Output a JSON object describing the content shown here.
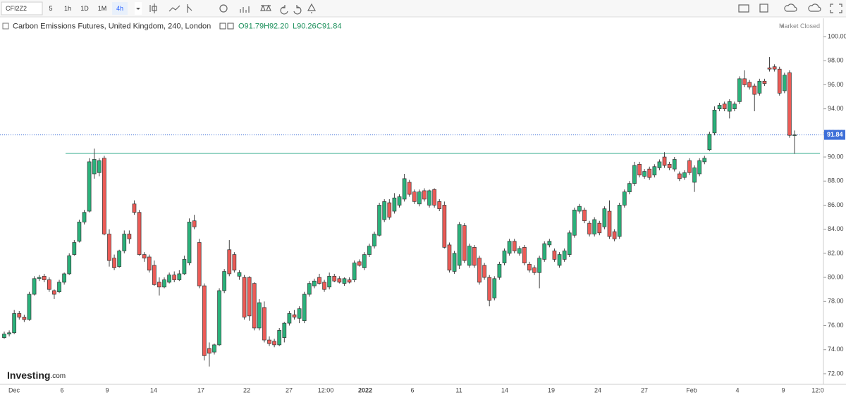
{
  "toolbar": {
    "symbol": "CFI2Z2",
    "intervals": [
      "5",
      "1h",
      "1D",
      "1M",
      "4h"
    ]
  },
  "chart_data": {
    "type": "candlestick",
    "title": "Carbon Emissions Futures, United Kingdom, 240, London",
    "ohlc_labels": [
      "O91.79",
      "H92.20",
      "L90.26",
      "C91.84"
    ],
    "status": "Market Closed",
    "brand": [
      "Investing",
      ".com"
    ],
    "up_color": "#2ab27b",
    "down_color": "#ec5b56",
    "open": [
      75.0,
      75.3,
      75.4,
      77.0,
      76.7,
      76.5,
      78.6,
      79.9,
      80.1,
      79.8,
      78.9,
      78.8,
      79.6,
      80.3,
      81.9,
      83.0,
      84.6,
      85.5,
      88.6,
      88.7,
      89.9,
      83.6,
      81.6,
      80.9,
      82.2,
      83.6,
      86.1,
      85.4,
      81.9,
      81.7,
      81.0,
      79.6,
      79.2,
      79.6,
      80.2,
      79.8,
      80.3,
      81.2,
      84.7,
      82.9,
      79.3,
      74.1,
      73.8,
      74.4,
      78.9,
      82.3,
      81.9,
      80.1,
      80.0,
      80.0,
      79.5,
      75.8,
      77.5,
      74.8,
      74.7,
      74.4,
      75.0,
      76.2,
      76.9,
      76.6,
      76.4,
      78.6,
      79.3,
      80.0,
      79.6,
      79.2,
      80.1,
      79.9,
      79.5,
      79.8,
      79.8,
      81.3,
      80.8,
      81.9,
      82.6,
      83.5,
      84.8,
      86.2,
      85.5,
      86.0,
      86.5,
      87.9,
      87.1,
      86.1,
      87.2,
      86.0,
      87.3,
      86.3,
      86.0,
      82.7,
      80.5,
      81.0,
      84.3,
      81.0,
      82.5,
      81.6,
      81.0,
      80.0,
      78.3,
      80.0,
      81.2,
      82.0,
      83.0,
      82.0,
      82.5,
      81.1,
      80.8,
      80.4,
      81.5,
      82.7,
      82.2,
      81.0,
      81.5,
      81.9,
      83.5,
      85.5,
      85.6,
      84.5,
      83.6,
      84.5,
      84.2,
      85.5,
      83.8,
      83.4,
      86.0,
      87.1,
      87.8,
      89.4,
      88.4,
      89.0,
      88.5,
      89.1,
      90.0,
      89.4,
      89.0,
      88.6,
      88.3,
      89.7,
      87.9,
      88.6,
      89.6,
      90.6,
      92.0,
      94.0,
      94.4,
      93.8,
      94.0,
      94.6,
      96.5,
      96.2,
      95.9,
      95.3,
      96.3,
      97.4,
      97.5,
      97.3,
      95.5,
      97.0,
      91.79
    ],
    "high": [
      75.5,
      75.6,
      77.3,
      77.2,
      76.9,
      78.8,
      80.1,
      80.2,
      80.3,
      80.0,
      79.0,
      79.8,
      80.4,
      82.0,
      83.1,
      84.8,
      85.6,
      89.9,
      90.7,
      89.9,
      90.1,
      84.0,
      81.9,
      82.3,
      83.9,
      83.9,
      86.4,
      85.6,
      82.1,
      81.9,
      81.4,
      80.0,
      80.0,
      80.4,
      80.5,
      80.6,
      81.8,
      84.9,
      85.2,
      83.2,
      79.5,
      74.6,
      74.5,
      79.1,
      80.7,
      83.1,
      82.1,
      80.6,
      80.2,
      80.1,
      79.6,
      78.2,
      78.0,
      75.1,
      74.9,
      75.8,
      76.3,
      77.2,
      77.3,
      77.6,
      78.8,
      79.7,
      79.9,
      80.3,
      79.8,
      80.4,
      80.3,
      80.1,
      80.0,
      80.0,
      81.4,
      81.5,
      82.1,
      82.8,
      83.8,
      86.2,
      86.5,
      86.5,
      87.0,
      86.9,
      88.6,
      88.1,
      87.3,
      87.3,
      87.4,
      87.3,
      87.4,
      86.5,
      86.3,
      82.9,
      82.2,
      84.6,
      84.5,
      82.8,
      82.7,
      81.8,
      81.2,
      80.2,
      80.1,
      81.3,
      82.4,
      83.2,
      83.2,
      82.6,
      82.7,
      81.3,
      81.0,
      81.8,
      83.0,
      83.2,
      82.4,
      82.1,
      82.4,
      83.9,
      85.8,
      86.1,
      85.8,
      84.7,
      85.0,
      84.7,
      85.9,
      86.4,
      84.0,
      86.2,
      87.3,
      88.0,
      89.6,
      89.6,
      89.0,
      89.2,
      89.4,
      89.8,
      90.4,
      89.6,
      90.0,
      88.8,
      88.9,
      89.9,
      89.3,
      89.9,
      90.1,
      92.1,
      94.2,
      94.5,
      94.6,
      94.8,
      94.6,
      96.7,
      97.2,
      96.4,
      96.1,
      96.5,
      96.5,
      98.3,
      97.7,
      97.5,
      97.0,
      97.2,
      92.2
    ],
    "low": [
      74.9,
      75.1,
      75.3,
      76.5,
      76.3,
      76.4,
      78.5,
      79.7,
      79.6,
      78.8,
      78.2,
      78.7,
      79.4,
      80.2,
      81.8,
      82.9,
      84.4,
      85.4,
      88.2,
      88.4,
      83.5,
      80.9,
      80.6,
      80.8,
      82.0,
      82.8,
      85.2,
      81.8,
      81.3,
      80.4,
      79.3,
      78.5,
      79.1,
      79.5,
      79.6,
      79.7,
      80.2,
      81.0,
      84.0,
      79.1,
      73.1,
      72.6,
      73.6,
      74.3,
      78.7,
      80.1,
      80.4,
      79.8,
      76.5,
      76.4,
      75.6,
      75.6,
      74.6,
      74.3,
      74.2,
      74.3,
      74.6,
      76.0,
      76.5,
      76.2,
      76.2,
      78.4,
      79.1,
      79.4,
      78.8,
      79.0,
      79.6,
      79.5,
      79.3,
      79.5,
      79.6,
      80.9,
      80.6,
      81.7,
      82.4,
      83.4,
      84.6,
      84.8,
      85.3,
      85.8,
      86.3,
      86.7,
      86.1,
      85.9,
      86.3,
      85.8,
      85.8,
      85.5,
      82.4,
      80.4,
      80.3,
      80.7,
      81.2,
      80.8,
      80.8,
      79.4,
      79.8,
      77.6,
      78.1,
      79.8,
      81.0,
      81.8,
      82.0,
      81.8,
      81.0,
      80.4,
      80.2,
      79.1,
      81.3,
      82.5,
      81.3,
      80.8,
      81.3,
      81.7,
      83.3,
      85.3,
      84.5,
      83.4,
      83.4,
      83.5,
      84.0,
      83.2,
      83.0,
      83.2,
      85.8,
      86.9,
      87.6,
      88.3,
      88.2,
      88.1,
      88.3,
      88.9,
      89.1,
      88.9,
      88.8,
      88.0,
      88.1,
      88.5,
      87.1,
      88.4,
      89.4,
      90.5,
      91.8,
      93.8,
      93.8,
      93.2,
      93.8,
      94.4,
      95.8,
      95.6,
      93.8,
      95.1,
      95.9,
      97.1,
      97.1,
      95.1,
      95.3,
      91.6,
      90.26
    ],
    "close": [
      75.3,
      75.4,
      77.0,
      76.7,
      76.5,
      78.6,
      79.9,
      80.0,
      79.8,
      79.0,
      78.6,
      79.6,
      80.3,
      81.8,
      82.9,
      84.6,
      85.4,
      89.6,
      89.8,
      89.7,
      83.6,
      81.4,
      80.8,
      82.2,
      83.6,
      83.2,
      85.4,
      81.9,
      81.6,
      80.6,
      79.4,
      79.2,
      79.8,
      80.2,
      79.8,
      80.3,
      81.5,
      84.6,
      84.2,
      79.3,
      73.5,
      73.7,
      74.4,
      78.9,
      80.5,
      80.3,
      80.6,
      80.4,
      76.7,
      76.8,
      75.8,
      77.9,
      74.8,
      74.5,
      74.4,
      75.6,
      76.2,
      77.0,
      76.7,
      77.4,
      78.6,
      79.5,
      79.7,
      79.5,
      79.0,
      80.1,
      79.7,
      79.6,
      79.9,
      79.6,
      81.2,
      81.0,
      81.9,
      82.6,
      83.6,
      86.0,
      86.3,
      85.0,
      86.6,
      86.7,
      88.2,
      86.9,
      86.3,
      87.1,
      86.5,
      87.2,
      86.0,
      85.7,
      82.5,
      80.6,
      82.0,
      84.4,
      81.4,
      82.6,
      81.0,
      79.6,
      80.0,
      78.1,
      79.9,
      81.1,
      82.2,
      83.0,
      82.2,
      82.4,
      81.2,
      80.6,
      80.4,
      81.6,
      82.8,
      83.0,
      81.5,
      81.9,
      82.2,
      83.7,
      85.6,
      85.9,
      84.7,
      83.6,
      84.8,
      83.7,
      85.7,
      83.4,
      83.2,
      86.0,
      87.1,
      87.8,
      89.3,
      88.5,
      88.8,
      88.3,
      89.2,
      89.6,
      89.3,
      89.1,
      89.8,
      88.2,
      88.7,
      88.7,
      89.1,
      89.7,
      89.9,
      91.9,
      93.9,
      94.3,
      94.0,
      94.6,
      94.4,
      96.5,
      96.0,
      95.8,
      95.2,
      96.3,
      96.1,
      97.3,
      97.3,
      95.3,
      96.8,
      91.8,
      91.84
    ],
    "hline": 90.3,
    "last_price": 91.84,
    "ylim": [
      71.12,
      100.35
    ],
    "yticks": [
      {
        "value": 72,
        "label": "72.00"
      },
      {
        "value": 74,
        "label": "74.00"
      },
      {
        "value": 76,
        "label": "76.00"
      },
      {
        "value": 78,
        "label": "78.00"
      },
      {
        "value": 80,
        "label": "80.00"
      },
      {
        "value": 82,
        "label": "82.00"
      },
      {
        "value": 84,
        "label": "84.00"
      },
      {
        "value": 86,
        "label": "86.00"
      },
      {
        "value": 88,
        "label": "88.00"
      },
      {
        "value": 90,
        "label": "90.00"
      },
      {
        "value": 92,
        "label": "92.00"
      },
      {
        "value": 94,
        "label": "94.00"
      },
      {
        "value": 96,
        "label": "96.00"
      },
      {
        "value": 98,
        "label": "98.00"
      },
      {
        "value": 100,
        "label": "100.00"
      }
    ],
    "xtick_labels": [
      "Dec",
      "6",
      "9",
      "14",
      "17",
      "22",
      "27",
      "12:00",
      "2022",
      "6",
      "11",
      "14",
      "19",
      "24",
      "27",
      "Feb",
      "4",
      "9",
      "12:0"
    ],
    "grid": false
  }
}
